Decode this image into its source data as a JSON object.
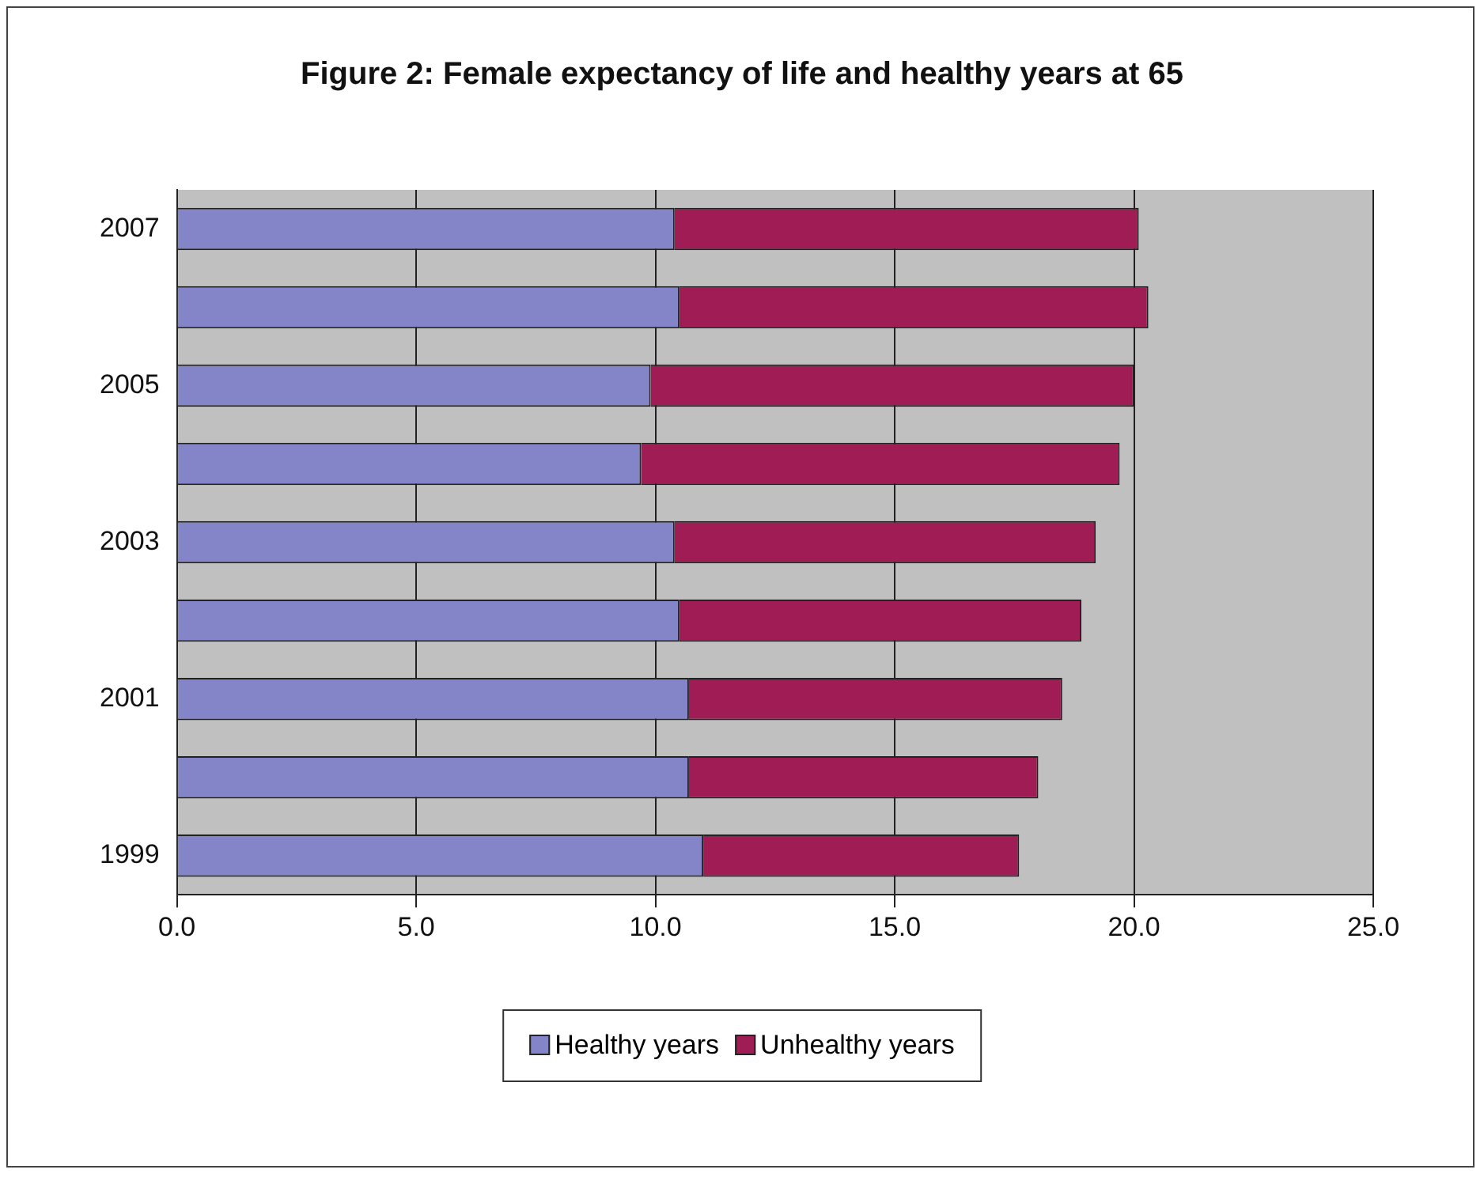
{
  "chart_data": {
    "type": "bar",
    "orientation": "horizontal",
    "stacked": true,
    "title": "Figure 2: Female expectancy of life and healthy years at 65",
    "categories": [
      "2007",
      null,
      "2005",
      null,
      "2003",
      null,
      "2001",
      null,
      "1999"
    ],
    "series": [
      {
        "name": "Healthy years",
        "color": "#8484c8",
        "values": [
          10.4,
          10.5,
          9.9,
          9.7,
          10.4,
          10.5,
          10.7,
          10.7,
          11.0
        ]
      },
      {
        "name": "Unhealthy years",
        "color": "#a01c54",
        "values": [
          9.7,
          9.8,
          10.1,
          10.0,
          8.8,
          8.4,
          7.8,
          7.3,
          6.6
        ]
      }
    ],
    "xlim": [
      0,
      25
    ],
    "xticks": [
      {
        "value": 0,
        "label": "0.0"
      },
      {
        "value": 5,
        "label": "5.0"
      },
      {
        "value": 10,
        "label": "10.0"
      },
      {
        "value": 15,
        "label": "15.0"
      },
      {
        "value": 20,
        "label": "20.0"
      },
      {
        "value": 25,
        "label": "25.0"
      }
    ],
    "grid": "x",
    "legend": "bottom"
  }
}
